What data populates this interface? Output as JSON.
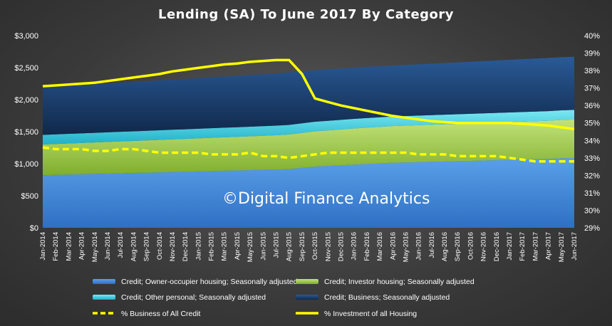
{
  "chart_data": {
    "type": "area",
    "title": "Lending (SA) To June 2017 By Category",
    "watermark": "©Digital Finance Analytics",
    "categories": [
      "Jan-2014",
      "Feb-2014",
      "Mar-2014",
      "Apr-2014",
      "May-2014",
      "Jun-2014",
      "Jul-2014",
      "Aug-2014",
      "Sep-2014",
      "Oct-2014",
      "Nov-2014",
      "Dec-2014",
      "Jan-2015",
      "Feb-2015",
      "Mar-2015",
      "Apr-2015",
      "May-2015",
      "Jun-2015",
      "Jul-2015",
      "Aug-2015",
      "Sep-2015",
      "Oct-2015",
      "Nov-2015",
      "Dec-2015",
      "Jan-2016",
      "Feb-2016",
      "Mar-2016",
      "Apr-2016",
      "May-2016",
      "Jun-2016",
      "Jul-2016",
      "Aug-2016",
      "Sep-2016",
      "Oct-2016",
      "Nov-2016",
      "Dec-2016",
      "Jan-2017",
      "Feb-2017",
      "Mar-2017",
      "Apr-2017",
      "May-2017",
      "Jun-2017"
    ],
    "y_left": {
      "ticks": [
        "$0",
        "$500",
        "$1,000",
        "$1,500",
        "$2,000",
        "$2,500",
        "$3,000"
      ],
      "ylim": [
        0,
        3000
      ]
    },
    "y_right": {
      "ticks": [
        "29%",
        "30%",
        "31%",
        "32%",
        "33%",
        "34%",
        "35%",
        "36%",
        "37%",
        "38%",
        "39%",
        "40%"
      ],
      "ylim": [
        29,
        40
      ]
    },
    "grid": false,
    "legend_position": "bottom",
    "stacked_series": [
      {
        "name": "Credit; Owner-occupier housing; Seasonally adjusted",
        "color": "#4a8fd8",
        "values": [
          820,
          825,
          830,
          835,
          840,
          845,
          850,
          855,
          860,
          865,
          870,
          875,
          880,
          885,
          890,
          895,
          900,
          905,
          910,
          915,
          935,
          955,
          965,
          975,
          985,
          995,
          1005,
          1015,
          1020,
          1025,
          1030,
          1035,
          1040,
          1045,
          1050,
          1055,
          1060,
          1065,
          1070,
          1075,
          1085,
          1090
        ]
      },
      {
        "name": "Credit; Investor housing; Seasonally adjusted",
        "color": "#a8d050",
        "values": [
          480,
          483,
          486,
          489,
          492,
          495,
          498,
          501,
          504,
          507,
          510,
          513,
          516,
          519,
          522,
          525,
          528,
          531,
          535,
          540,
          545,
          550,
          555,
          560,
          565,
          568,
          570,
          572,
          574,
          576,
          578,
          580,
          582,
          584,
          586,
          588,
          590,
          592,
          594,
          596,
          598,
          600
        ]
      },
      {
        "name": "Credit; Other personal; Seasonally adjusted",
        "color": "#3ad0e0",
        "values": [
          150,
          150,
          150,
          150,
          150,
          150,
          150,
          150,
          150,
          150,
          150,
          150,
          150,
          150,
          150,
          150,
          150,
          150,
          150,
          150,
          150,
          150,
          150,
          150,
          150,
          150,
          150,
          150,
          150,
          150,
          150,
          150,
          150,
          150,
          150,
          150,
          150,
          150,
          150,
          150,
          150,
          150
        ]
      },
      {
        "name": "Credit; Business; Seasonally adjusted",
        "color": "#1d3f6e",
        "values": [
          730,
          737,
          743,
          750,
          756,
          762,
          766,
          770,
          774,
          778,
          782,
          786,
          790,
          794,
          798,
          802,
          806,
          810,
          815,
          820,
          812,
          806,
          802,
          800,
          798,
          797,
          797,
          797,
          798,
          800,
          803,
          806,
          810,
          812,
          815,
          819,
          822,
          825,
          827,
          830,
          830,
          830
        ]
      }
    ],
    "line_series": [
      {
        "name": "% Business of All Credit",
        "color": "#ffff00",
        "dashed": true,
        "axis": "right",
        "values": [
          33.6,
          33.5,
          33.5,
          33.5,
          33.4,
          33.4,
          33.5,
          33.5,
          33.4,
          33.3,
          33.3,
          33.3,
          33.3,
          33.2,
          33.2,
          33.2,
          33.3,
          33.1,
          33.1,
          33.0,
          33.1,
          33.2,
          33.3,
          33.3,
          33.3,
          33.3,
          33.3,
          33.3,
          33.3,
          33.2,
          33.2,
          33.2,
          33.1,
          33.1,
          33.1,
          33.1,
          33.0,
          32.9,
          32.8,
          32.8,
          32.8,
          32.8
        ]
      },
      {
        "name": "% Investment of all Housing",
        "color": "#ffff00",
        "dashed": false,
        "axis": "right",
        "values": [
          37.1,
          37.15,
          37.2,
          37.25,
          37.3,
          37.4,
          37.5,
          37.6,
          37.7,
          37.8,
          37.95,
          38.05,
          38.15,
          38.25,
          38.35,
          38.4,
          38.5,
          38.55,
          38.6,
          38.6,
          37.8,
          36.4,
          36.2,
          36.0,
          35.85,
          35.7,
          35.55,
          35.4,
          35.3,
          35.2,
          35.1,
          35.05,
          35.0,
          35.0,
          35.0,
          35.0,
          35.0,
          34.95,
          34.9,
          34.85,
          34.75,
          34.65
        ]
      }
    ]
  }
}
